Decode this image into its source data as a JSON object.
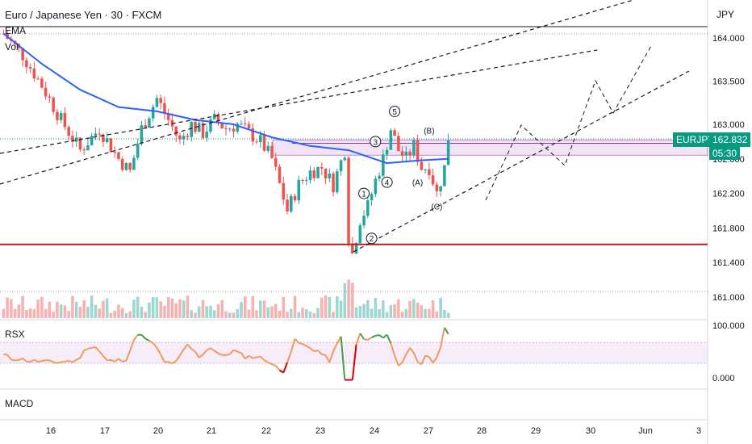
{
  "header": {
    "title": "Euro / Japanese Yen · 30 · FXCM",
    "currency": "JPY"
  },
  "indicators": {
    "ema_label": "EMA",
    "vol_label": "Vol",
    "rsx_label": "RSX",
    "macd_label": "MACD"
  },
  "price_tag": {
    "symbol": "EURJPY",
    "price": "162.832",
    "countdown": "05:30"
  },
  "colors": {
    "up": "#26a69a",
    "down": "#ef5350",
    "ema": "#2962ff",
    "support_line": "#b71c1c",
    "rsx_high": "#43a047",
    "rsx_mid": "#ef9a5c",
    "rsx_low": "#d50000",
    "badge": "#089981",
    "zone": "#e1bee7"
  },
  "chart_data": {
    "type": "candlestick",
    "y_axis": {
      "ticks": [
        164.0,
        163.5,
        163.0,
        162.6,
        162.2,
        161.8,
        161.4,
        161.0
      ],
      "tick_labels": [
        "164.000",
        "163.500",
        "163.000",
        "162.600",
        "162.200",
        "161.800",
        "161.400",
        "161.000"
      ],
      "range": [
        160.9,
        164.4
      ]
    },
    "x_axis": {
      "tick_labels": [
        "16",
        "17",
        "20",
        "21",
        "22",
        "23",
        "24",
        "27",
        "28",
        "29",
        "30",
        "Jun",
        "3"
      ]
    },
    "price_path": [
      [
        0,
        164.05
      ],
      [
        5,
        163.8
      ],
      [
        10,
        163.45
      ],
      [
        15,
        163.05
      ],
      [
        20,
        162.7
      ],
      [
        25,
        162.95
      ],
      [
        30,
        162.6
      ],
      [
        33,
        162.45
      ],
      [
        36,
        162.95
      ],
      [
        40,
        163.3
      ],
      [
        43,
        163.05
      ],
      [
        46,
        162.8
      ],
      [
        49,
        163.0
      ],
      [
        52,
        162.9
      ],
      [
        55,
        163.05
      ],
      [
        58,
        162.95
      ],
      [
        61,
        163.0
      ],
      [
        64,
        162.9
      ],
      [
        67,
        162.8
      ],
      [
        70,
        162.6
      ],
      [
        72,
        162.3
      ],
      [
        74,
        162.0
      ],
      [
        77,
        162.3
      ],
      [
        80,
        162.45
      ],
      [
        83,
        162.5
      ],
      [
        86,
        162.3
      ],
      [
        89,
        162.7
      ],
      [
        90,
        161.7
      ],
      [
        91,
        161.5
      ],
      [
        93,
        161.9
      ],
      [
        95,
        162.05
      ],
      [
        97,
        162.35
      ],
      [
        99,
        162.6
      ],
      [
        101,
        162.95
      ],
      [
        103,
        162.7
      ],
      [
        105,
        162.6
      ],
      [
        107,
        162.75
      ],
      [
        109,
        162.5
      ],
      [
        111,
        162.5
      ],
      [
        113,
        162.2
      ],
      [
        115,
        162.5
      ],
      [
        116,
        162.85
      ]
    ],
    "ema_path": [
      [
        0,
        164.05
      ],
      [
        10,
        163.7
      ],
      [
        20,
        163.4
      ],
      [
        30,
        163.2
      ],
      [
        40,
        163.15
      ],
      [
        50,
        163.05
      ],
      [
        60,
        163.0
      ],
      [
        70,
        162.85
      ],
      [
        80,
        162.75
      ],
      [
        90,
        162.7
      ],
      [
        100,
        162.55
      ],
      [
        108,
        162.58
      ],
      [
        116,
        162.6
      ]
    ],
    "support_level": 161.61,
    "resistance_zone": [
      162.68,
      162.78
    ],
    "last_price": 162.832,
    "wave_labels": [
      {
        "text": "1",
        "x": 94,
        "y": 162.2,
        "circled": true
      },
      {
        "text": "2",
        "x": 96,
        "y": 161.68,
        "circled": true
      },
      {
        "text": "3",
        "x": 97,
        "y": 162.8,
        "circled": true
      },
      {
        "text": "4",
        "x": 100,
        "y": 162.33,
        "circled": true
      },
      {
        "text": "5",
        "x": 102,
        "y": 163.15,
        "circled": true
      },
      {
        "text": "(A)",
        "x": 108,
        "y": 162.33,
        "circled": false
      },
      {
        "text": "(B)",
        "x": 111,
        "y": 162.93,
        "circled": false
      },
      {
        "text": "(C)",
        "x": 113,
        "y": 162.05,
        "circled": false
      }
    ],
    "rsx": {
      "ticks": [
        100,
        0
      ],
      "tick_labels": [
        "100.000",
        "0.000"
      ]
    }
  }
}
